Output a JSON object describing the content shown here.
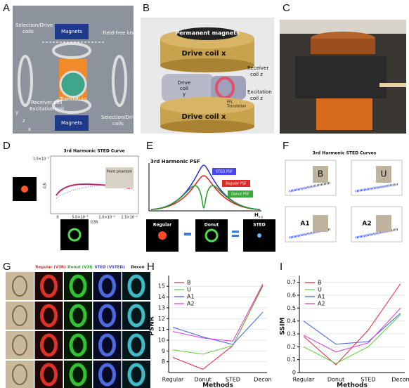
{
  "panels": {
    "A": {
      "label": "A",
      "texts": [
        "Magnets",
        "Field-free line",
        "Selection/Drive",
        "coils",
        "Translation",
        "Receiver coil",
        "Excitation coil",
        "Selection/Drive",
        "coils",
        "Magnets",
        "y",
        "z",
        "x"
      ]
    },
    "B": {
      "label": "B",
      "texts": [
        "Permanent magnets",
        "Drive coil x",
        "Drive",
        "coil",
        "y",
        "Receiver",
        "coil z",
        "FFL",
        "Translation",
        "Excitation",
        "coil z",
        "Drive coil x"
      ]
    },
    "C": {
      "label": "C"
    },
    "D": {
      "label": "D",
      "texts": [
        "3rd Harmonic STED Curve",
        "1.5×10⁻³",
        "Point phantom",
        "G3I",
        "0",
        "5.0×10⁻⁴",
        "1.0×10⁻³",
        "1.5×10⁻³",
        "G3R"
      ]
    },
    "E": {
      "label": "E",
      "texts": [
        "3rd Harmonic PSF",
        "STED PSF",
        "Regular PSF",
        "Donut PSF",
        "H",
        "x-y",
        "Regular",
        "Donut",
        "STED"
      ]
    },
    "F": {
      "label": "F",
      "texts": [
        "3rd Harmonic STED Curves",
        "B",
        "U",
        "A1",
        "A2"
      ]
    },
    "G": {
      "label": "G",
      "texts": [
        "Regular (V3R)",
        "Donut (V3I)",
        "STED (VSTED)",
        "Decon"
      ]
    }
  },
  "chart_data": [
    {
      "type": "line",
      "label": "H",
      "ylabel": "PSNR",
      "xlabel": "Methods",
      "categories": [
        "Regular",
        "Donut",
        "STED",
        "Decon"
      ],
      "series": [
        {
          "name": "B",
          "color": "#e8283c",
          "values": [
            8.4,
            7.3,
            9.5,
            15.1
          ]
        },
        {
          "name": "U",
          "color": "#5ccf3a",
          "values": [
            9.1,
            8.7,
            9.5,
            15.0
          ]
        },
        {
          "name": "A1",
          "color": "#3a5ef0",
          "values": [
            11.2,
            10.3,
            9.6,
            12.6
          ]
        },
        {
          "name": "A2",
          "color": "#d63ad6",
          "values": [
            10.8,
            10.2,
            9.9,
            15.2
          ]
        }
      ],
      "ylim": [
        7,
        15.6
      ],
      "yticks": [
        8,
        9,
        10,
        11,
        12,
        13,
        14,
        15
      ],
      "grid": true,
      "legend": "upper left"
    },
    {
      "type": "line",
      "label": "I",
      "ylabel": "SSIM",
      "xlabel": "Methods",
      "categories": [
        "Regular",
        "Donut",
        "STED",
        "Decon"
      ],
      "series": [
        {
          "name": "B",
          "color": "#e8283c",
          "values": [
            0.28,
            0.06,
            0.33,
            0.69
          ]
        },
        {
          "name": "U",
          "color": "#5ccf3a",
          "values": [
            0.2,
            0.07,
            0.2,
            0.45
          ]
        },
        {
          "name": "A1",
          "color": "#3a5ef0",
          "values": [
            0.4,
            0.22,
            0.24,
            0.46
          ]
        },
        {
          "name": "A2",
          "color": "#d63ad6",
          "values": [
            0.29,
            0.16,
            0.23,
            0.5
          ]
        }
      ],
      "ylim": [
        0,
        0.72
      ],
      "yticks": [
        0,
        0.1,
        0.2,
        0.3,
        0.4,
        0.5,
        0.6,
        0.7
      ],
      "grid": true,
      "legend": "upper left"
    }
  ]
}
